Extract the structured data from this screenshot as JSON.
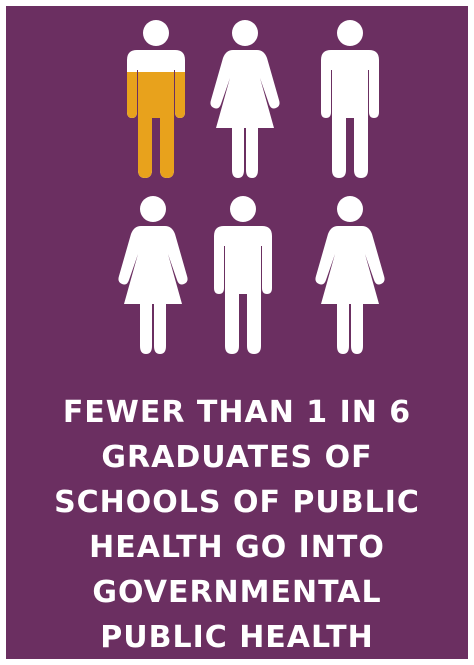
{
  "colors": {
    "background": "#6b2f61",
    "figure": "#ffffff",
    "highlight": "#e8a21c"
  },
  "pictogram": {
    "total": 6,
    "highlighted_count": 1,
    "highlight_fill_fraction": 0.6,
    "figures": [
      {
        "icon": "man-icon",
        "highlighted": true
      },
      {
        "icon": "woman-icon",
        "highlighted": false
      },
      {
        "icon": "man-icon",
        "highlighted": false
      },
      {
        "icon": "woman-icon",
        "highlighted": false
      },
      {
        "icon": "man-icon",
        "highlighted": false
      },
      {
        "icon": "woman-icon",
        "highlighted": false
      }
    ]
  },
  "caption": {
    "lines": [
      "FEWER THAN 1 IN 6",
      "GRADUATES OF",
      "SCHOOLS OF PUBLIC",
      "HEALTH GO INTO",
      "GOVERNMENTAL",
      "PUBLIC HEALTH"
    ]
  }
}
